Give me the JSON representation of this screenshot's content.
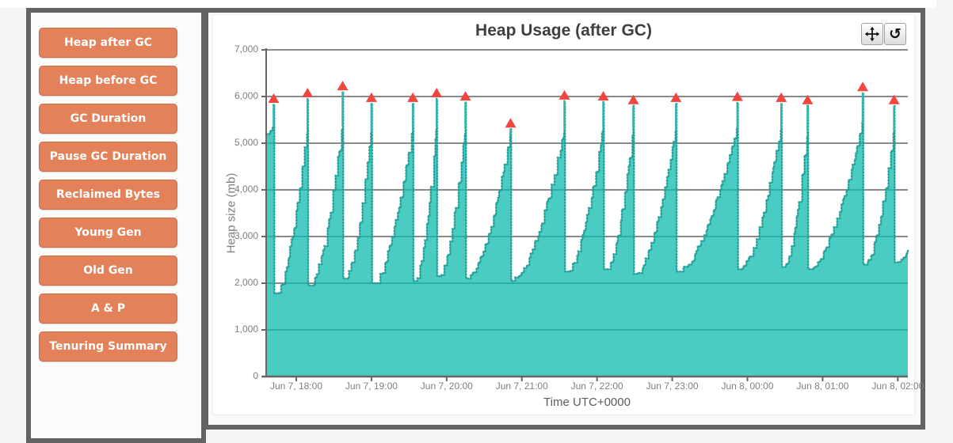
{
  "page": {
    "background": "#f5f5f5",
    "panel_border_color": "#636363",
    "panel_bg": "#fbfbfb"
  },
  "sidebar": {
    "button_color": "#e2815a",
    "button_text_color": "#ffffff",
    "buttons": [
      {
        "label": "Heap after GC"
      },
      {
        "label": "Heap before GC"
      },
      {
        "label": "GC Duration"
      },
      {
        "label": "Pause GC Duration"
      },
      {
        "label": "Reclaimed Bytes"
      },
      {
        "label": "Young Gen"
      },
      {
        "label": "Old Gen"
      },
      {
        "label": "A & P"
      },
      {
        "label": "Tenuring Summary"
      }
    ]
  },
  "chart_panel": {
    "toolbar": [
      {
        "name": "pan-icon"
      },
      {
        "name": "reset-zoom-icon",
        "glyph": "↺"
      }
    ],
    "chart_data": {
      "type": "area",
      "title": "Heap Usage (after GC)",
      "xlabel": "Time UTC+0000",
      "ylabel": "Heap size (mb)",
      "ylim": [
        0,
        7000
      ],
      "grid": "horizontal-only",
      "t_unit": "minutes from chart left edge",
      "t_range": [
        0,
        512
      ],
      "y_ticks": [
        {
          "mb": 0,
          "label": "0"
        },
        {
          "mb": 1000,
          "label": "1,000"
        },
        {
          "mb": 2000,
          "label": "2,000"
        },
        {
          "mb": 3000,
          "label": "3,000"
        },
        {
          "mb": 4000,
          "label": "4,000"
        },
        {
          "mb": 5000,
          "label": "5,000"
        },
        {
          "mb": 6000,
          "label": "6,000"
        },
        {
          "mb": 7000,
          "label": "7,000"
        }
      ],
      "x_ticks": [
        {
          "t": 24,
          "label": "Jun 7, 18:00"
        },
        {
          "t": 84,
          "label": "Jun 7, 19:00"
        },
        {
          "t": 144,
          "label": "Jun 7, 20:00"
        },
        {
          "t": 204,
          "label": "Jun 7, 21:00"
        },
        {
          "t": 264,
          "label": "Jun 7, 22:00"
        },
        {
          "t": 324,
          "label": "Jun 7, 23:00"
        },
        {
          "t": 384,
          "label": "Jun 8, 00:00"
        },
        {
          "t": 444,
          "label": "Jun 8, 01:00"
        },
        {
          "t": 504,
          "label": "Jun 8, 02:00"
        }
      ],
      "series": {
        "name": "Heap after GC",
        "fill_color": "#4accc3",
        "edge_color": "#1f9d95",
        "spike_color": "#2fb5ad"
      },
      "marker": {
        "name": "full-gc-marker",
        "shape": "triangle-up",
        "color": "#f2453d"
      },
      "gridline_color": "#8a8a8a",
      "axis_color": "#666666",
      "start": {
        "t": 0,
        "mb": 5200
      },
      "end": {
        "t": 512,
        "mb": 2700
      },
      "gc_cycles": [
        {
          "t": 6,
          "pre_gc_mb": 5380,
          "peak_mb": 5830,
          "post_gc_mb": 1780
        },
        {
          "t": 33,
          "pre_gc_mb": 5350,
          "peak_mb": 5950,
          "post_gc_mb": 1950
        },
        {
          "t": 61,
          "pre_gc_mb": 5400,
          "peak_mb": 6100,
          "post_gc_mb": 2100
        },
        {
          "t": 84,
          "pre_gc_mb": 5300,
          "peak_mb": 5850,
          "post_gc_mb": 2000
        },
        {
          "t": 117,
          "pre_gc_mb": 5350,
          "peak_mb": 5850,
          "post_gc_mb": 2050
        },
        {
          "t": 136,
          "pre_gc_mb": 5400,
          "peak_mb": 5950,
          "post_gc_mb": 2150
        },
        {
          "t": 159,
          "pre_gc_mb": 5350,
          "peak_mb": 5880,
          "post_gc_mb": 2100
        },
        {
          "t": 195,
          "pre_gc_mb": 5200,
          "peak_mb": 5300,
          "post_gc_mb": 2050
        },
        {
          "t": 238,
          "pre_gc_mb": 5300,
          "peak_mb": 5900,
          "post_gc_mb": 2250
        },
        {
          "t": 269,
          "pre_gc_mb": 5350,
          "peak_mb": 5880,
          "post_gc_mb": 2300
        },
        {
          "t": 293,
          "pre_gc_mb": 5300,
          "peak_mb": 5800,
          "post_gc_mb": 2200
        },
        {
          "t": 327,
          "pre_gc_mb": 5300,
          "peak_mb": 5850,
          "post_gc_mb": 2250
        },
        {
          "t": 376,
          "pre_gc_mb": 5350,
          "peak_mb": 5870,
          "post_gc_mb": 2300
        },
        {
          "t": 411,
          "pre_gc_mb": 5350,
          "peak_mb": 5850,
          "post_gc_mb": 2350
        },
        {
          "t": 432,
          "pre_gc_mb": 5300,
          "peak_mb": 5800,
          "post_gc_mb": 2300
        },
        {
          "t": 476,
          "pre_gc_mb": 5450,
          "peak_mb": 6080,
          "post_gc_mb": 2400
        },
        {
          "t": 501,
          "pre_gc_mb": 5300,
          "peak_mb": 5800,
          "post_gc_mb": 2450
        }
      ]
    }
  }
}
